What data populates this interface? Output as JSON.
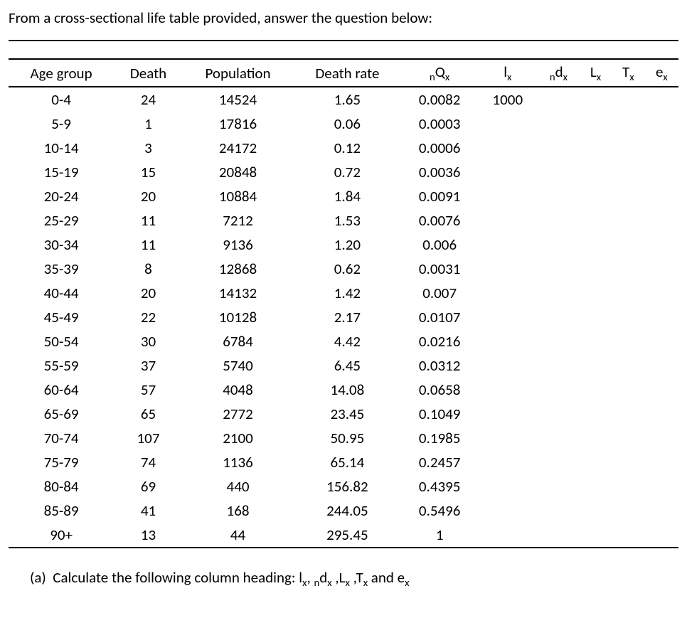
{
  "intro": "From a cross-sectional life table provided, answer the question below:",
  "table": {
    "headers": {
      "age_group": "Age group",
      "death": "Death",
      "population": "Population",
      "death_rate": "Death rate",
      "nqx_pre": "n",
      "nqx_main": "Q",
      "nqx_sub": "x",
      "lx_main": "l",
      "lx_sub": "x",
      "ndx_pre": "n",
      "ndx_main": "d",
      "ndx_sub": "x",
      "Lx_main": "L",
      "Lx_sub": "x",
      "Tx_main": "T",
      "Tx_sub": "x",
      "ex_main": "e",
      "ex_sub": "x"
    },
    "rows": [
      {
        "age": "0-4",
        "death": "24",
        "pop": "14524",
        "rate": "1.65",
        "nqx": "0.0082",
        "lx": "1000"
      },
      {
        "age": "5-9",
        "death": "1",
        "pop": "17816",
        "rate": "0.06",
        "nqx": "0.0003",
        "lx": ""
      },
      {
        "age": "10-14",
        "death": "3",
        "pop": "24172",
        "rate": "0.12",
        "nqx": "0.0006",
        "lx": ""
      },
      {
        "age": "15-19",
        "death": "15",
        "pop": "20848",
        "rate": "0.72",
        "nqx": "0.0036",
        "lx": ""
      },
      {
        "age": "20-24",
        "death": "20",
        "pop": "10884",
        "rate": "1.84",
        "nqx": "0.0091",
        "lx": ""
      },
      {
        "age": "25-29",
        "death": "11",
        "pop": "7212",
        "rate": "1.53",
        "nqx": "0.0076",
        "lx": ""
      },
      {
        "age": "30-34",
        "death": "11",
        "pop": "9136",
        "rate": "1.20",
        "nqx": "0.006",
        "lx": ""
      },
      {
        "age": "35-39",
        "death": "8",
        "pop": "12868",
        "rate": "0.62",
        "nqx": "0.0031",
        "lx": ""
      },
      {
        "age": "40-44",
        "death": "20",
        "pop": "14132",
        "rate": "1.42",
        "nqx": "0.007",
        "lx": ""
      },
      {
        "age": "45-49",
        "death": "22",
        "pop": "10128",
        "rate": "2.17",
        "nqx": "0.0107",
        "lx": ""
      },
      {
        "age": "50-54",
        "death": "30",
        "pop": "6784",
        "rate": "4.42",
        "nqx": "0.0216",
        "lx": ""
      },
      {
        "age": "55-59",
        "death": "37",
        "pop": "5740",
        "rate": "6.45",
        "nqx": "0.0312",
        "lx": ""
      },
      {
        "age": "60-64",
        "death": "57",
        "pop": "4048",
        "rate": "14.08",
        "nqx": "0.0658",
        "lx": ""
      },
      {
        "age": "65-69",
        "death": "65",
        "pop": "2772",
        "rate": "23.45",
        "nqx": "0.1049",
        "lx": ""
      },
      {
        "age": "70-74",
        "death": "107",
        "pop": "2100",
        "rate": "50.95",
        "nqx": "0.1985",
        "lx": ""
      },
      {
        "age": "75-79",
        "death": "74",
        "pop": "1136",
        "rate": "65.14",
        "nqx": "0.2457",
        "lx": ""
      },
      {
        "age": "80-84",
        "death": "69",
        "pop": "440",
        "rate": "156.82",
        "nqx": "0.4395",
        "lx": ""
      },
      {
        "age": "85-89",
        "death": "41",
        "pop": "168",
        "rate": "244.05",
        "nqx": "0.5496",
        "lx": ""
      },
      {
        "age": "90+",
        "death": "13",
        "pop": "44",
        "rate": "295.45",
        "nqx": "1",
        "lx": ""
      }
    ]
  },
  "question": {
    "label": "(a)",
    "pre": "Calculate the following column heading: l",
    "sub1": "x",
    "sep1": ", ",
    "pre_n1": "n",
    "d": "d",
    "subd": "x",
    "sep2": " ,",
    "L": "L",
    "subL": "x",
    "sep3": " ,",
    "T": "T",
    "subT": "x",
    "and": " and e",
    "sube": "x"
  }
}
